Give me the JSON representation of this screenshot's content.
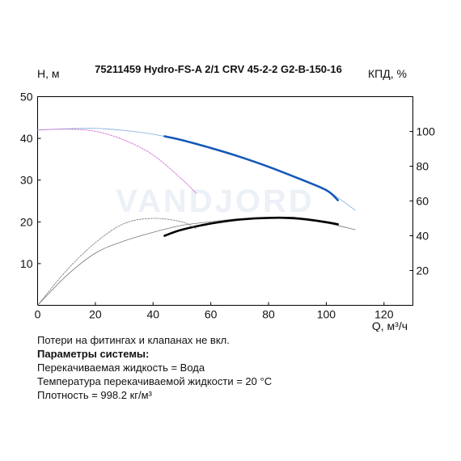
{
  "chart_data": {
    "type": "line",
    "title": "75211459 Hydro-FS-A 2/1 CRV 45-2-2 G2-B-150-16",
    "watermark": "VANDJORD",
    "ylabel": "H, м",
    "y2label": "КПД, %",
    "xlabel": "Q, м³/ч",
    "xlim": [
      0,
      130
    ],
    "ylim": [
      0,
      50
    ],
    "y2lim": [
      0,
      120
    ],
    "xticks": [
      0,
      20,
      40,
      60,
      80,
      100,
      120
    ],
    "yticks": [
      10,
      20,
      30,
      40,
      50
    ],
    "y2ticks": [
      20,
      40,
      60,
      80,
      100
    ],
    "grid": false,
    "series": [
      {
        "role": "head-full",
        "axis": "y",
        "color": "#8fb4e0",
        "x": [
          0,
          10,
          20,
          30,
          40,
          50,
          60,
          70,
          80,
          90,
          100,
          110
        ],
        "y": [
          42.0,
          42.3,
          42.4,
          41.9,
          41.0,
          39.6,
          37.7,
          35.6,
          33.2,
          30.5,
          27.6,
          22.8
        ]
      },
      {
        "role": "head-operating",
        "axis": "y",
        "color": "#1558b8",
        "x": [
          44,
          50,
          60,
          70,
          80,
          90,
          100,
          104
        ],
        "y": [
          40.5,
          39.6,
          37.7,
          35.6,
          33.2,
          30.5,
          27.6,
          25.2
        ]
      },
      {
        "role": "head-reduced",
        "axis": "y",
        "color": "#d070d0",
        "x": [
          0,
          10,
          20,
          30,
          40,
          50,
          55
        ],
        "y": [
          42.0,
          42.2,
          41.7,
          39.6,
          36.0,
          30.2,
          26.8
        ]
      },
      {
        "role": "efficiency-full",
        "axis": "y2",
        "color": "#777777",
        "x": [
          0,
          10,
          20,
          30,
          40,
          50,
          60,
          70,
          80,
          90,
          100,
          110
        ],
        "y": [
          0,
          17,
          30,
          37,
          42,
          46,
          48,
          49.8,
          50.2,
          49.4,
          47.3,
          43.5
        ]
      },
      {
        "role": "efficiency-operating",
        "axis": "y2",
        "color": "#000000",
        "x": [
          44,
          50,
          60,
          70,
          80,
          90,
          100,
          104
        ],
        "y": [
          40,
          43.5,
          47,
          49.3,
          50.3,
          50,
          47.8,
          46.6
        ]
      },
      {
        "role": "efficiency-reduced",
        "axis": "y2",
        "color": "#777777",
        "x": [
          0,
          10,
          20,
          30,
          40,
          50,
          55
        ],
        "y": [
          0,
          20,
          36,
          47,
          50,
          48,
          44
        ]
      }
    ]
  },
  "notes": {
    "line1": "Потери на фитингах и клапанах не вкл.",
    "heading": "Параметры системы:",
    "fluid": "Перекачиваемая жидкость = Вода",
    "temperature": "Температура перекачиваемой жидкости = 20 °C",
    "density": "Плотность = 998.2 кг/м³"
  }
}
